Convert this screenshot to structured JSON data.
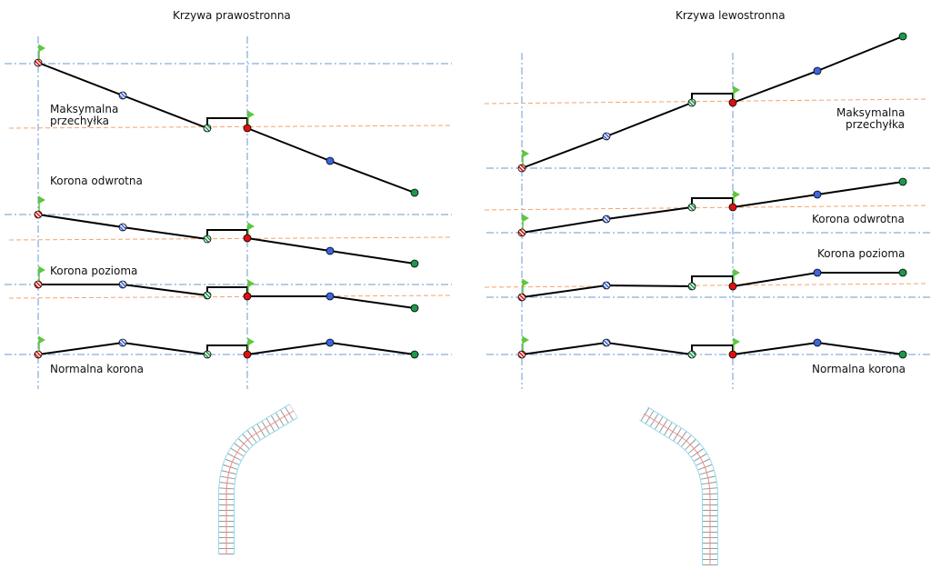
{
  "left_panel": {
    "title": "Krzywa prawostronna",
    "labels": {
      "max_tilt_1": "Maksymalna",
      "max_tilt_2": "przechyłka",
      "reverse_crown": "Korona odwrotna",
      "level_crown": "Korona pozioma",
      "normal_crown": "Normalna korona"
    }
  },
  "right_panel": {
    "title": "Krzywa lewostronna",
    "labels": {
      "max_tilt_1": "Maksymalna",
      "max_tilt_2": "przechyłka",
      "reverse_crown": "Korona odwrotna",
      "level_crown": "Korona pozioma",
      "normal_crown": "Normalna korona"
    }
  },
  "colors": {
    "axis_line": "#6a9ad6",
    "tilt_line": "#f4a46a",
    "profile": "#000000",
    "flag": "#5cc83a",
    "red": "#e01010",
    "blue": "#3a66e0",
    "green": "#1a9a4a",
    "road_edge": "#8fdcef",
    "road_center": "#f08a8a"
  }
}
